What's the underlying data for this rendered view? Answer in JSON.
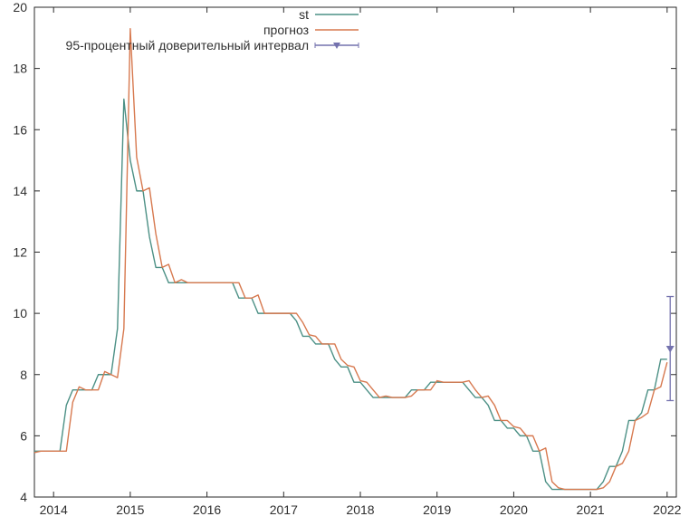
{
  "chart_data": {
    "type": "line",
    "title": "",
    "x_start": 2013.75,
    "x_step": 0.0833333,
    "xlim": [
      2013.75,
      2022.12
    ],
    "ylim": [
      4,
      20
    ],
    "xticks": [
      2014,
      2015,
      2016,
      2017,
      2018,
      2019,
      2020,
      2021,
      2022
    ],
    "yticks": [
      4,
      6,
      8,
      10,
      12,
      14,
      16,
      18,
      20
    ],
    "grid": false,
    "legend_position": "top-center",
    "axis_color": "#2a2a2a",
    "text_color": "#303030",
    "series": [
      {
        "name": "st",
        "color": "#4c9085",
        "values": [
          5.5,
          5.5,
          5.5,
          5.5,
          5.5,
          7.0,
          7.5,
          7.5,
          7.5,
          7.5,
          8.0,
          8.0,
          8.0,
          9.5,
          17.0,
          15.0,
          14.0,
          14.0,
          12.5,
          11.5,
          11.5,
          11.0,
          11.0,
          11.0,
          11.0,
          11.0,
          11.0,
          11.0,
          11.0,
          11.0,
          11.0,
          11.0,
          10.5,
          10.5,
          10.5,
          10.0,
          10.0,
          10.0,
          10.0,
          10.0,
          10.0,
          9.75,
          9.25,
          9.25,
          9.0,
          9.0,
          9.0,
          8.5,
          8.25,
          8.25,
          7.75,
          7.75,
          7.5,
          7.25,
          7.25,
          7.25,
          7.25,
          7.25,
          7.25,
          7.5,
          7.5,
          7.5,
          7.75,
          7.75,
          7.75,
          7.75,
          7.75,
          7.75,
          7.5,
          7.25,
          7.25,
          7.0,
          6.5,
          6.5,
          6.25,
          6.25,
          6.0,
          6.0,
          5.5,
          5.5,
          4.5,
          4.25,
          4.25,
          4.25,
          4.25,
          4.25,
          4.25,
          4.25,
          4.25,
          4.5,
          5.0,
          5.0,
          5.5,
          6.5,
          6.5,
          6.75,
          7.5,
          7.5,
          8.5,
          8.5
        ]
      },
      {
        "name": "прогноз",
        "color": "#d7794f",
        "values": [
          5.45,
          5.5,
          5.5,
          5.5,
          5.5,
          5.5,
          7.1,
          7.6,
          7.5,
          7.5,
          7.5,
          8.1,
          8.0,
          7.9,
          9.5,
          19.3,
          15.1,
          14.0,
          14.1,
          12.6,
          11.5,
          11.6,
          11.0,
          11.1,
          11.0,
          11.0,
          11.0,
          11.0,
          11.0,
          11.0,
          11.0,
          11.0,
          11.0,
          10.5,
          10.5,
          10.6,
          10.0,
          10.0,
          10.0,
          10.0,
          10.0,
          10.0,
          9.7,
          9.3,
          9.25,
          9.0,
          9.0,
          9.0,
          8.5,
          8.3,
          8.25,
          7.8,
          7.75,
          7.5,
          7.25,
          7.3,
          7.25,
          7.25,
          7.25,
          7.3,
          7.5,
          7.5,
          7.5,
          7.8,
          7.75,
          7.75,
          7.75,
          7.75,
          7.8,
          7.5,
          7.25,
          7.3,
          7.0,
          6.5,
          6.5,
          6.3,
          6.25,
          6.0,
          6.0,
          5.5,
          5.6,
          4.5,
          4.3,
          4.25,
          4.25,
          4.25,
          4.25,
          4.25,
          4.25,
          4.3,
          4.5,
          5.0,
          5.1,
          5.5,
          6.5,
          6.6,
          6.75,
          7.5,
          7.6,
          8.4
        ]
      }
    ],
    "confidence_interval": {
      "label": "95-процентный доверительный интервал",
      "color": "#7472ae",
      "x": 2022.04,
      "center": 8.85,
      "low": 7.15,
      "high": 10.55
    }
  }
}
